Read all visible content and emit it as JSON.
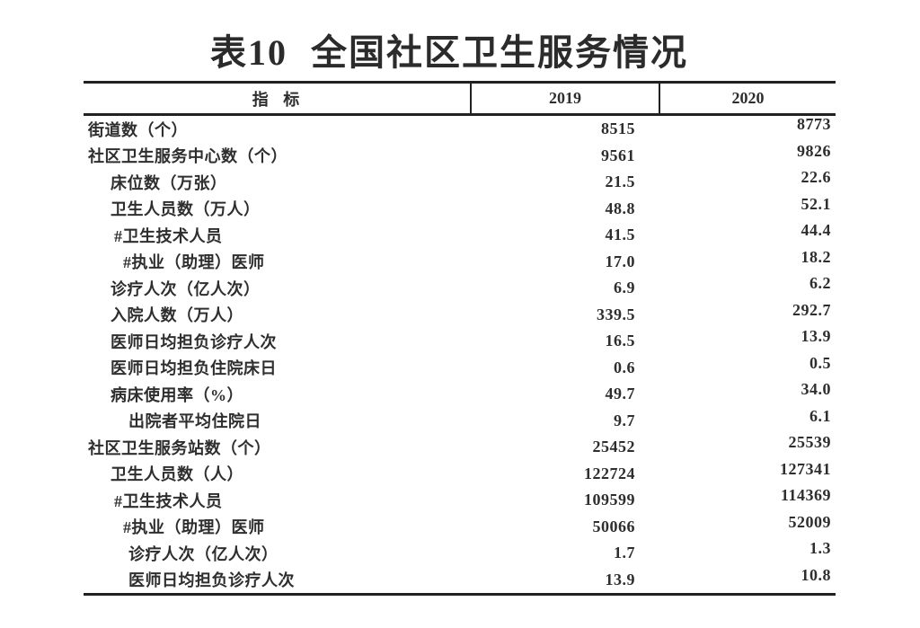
{
  "table": {
    "title": "表10 全国社区卫生服务情况",
    "header": {
      "indicator": "指 标",
      "col2019": "2019",
      "col2020": "2020"
    },
    "rows": [
      {
        "label": "街道数（个）",
        "indent": 0,
        "v2019": "8515",
        "v2020": "8773"
      },
      {
        "label": "社区卫生服务中心数（个）",
        "indent": 0,
        "v2019": "9561",
        "v2020": "9826"
      },
      {
        "label": "床位数（万张）",
        "indent": 1,
        "v2019": "21.5",
        "v2020": "22.6"
      },
      {
        "label": "卫生人员数（万人）",
        "indent": 1,
        "v2019": "48.8",
        "v2020": "52.1"
      },
      {
        "label": "#卫生技术人员",
        "indent": 2,
        "v2019": "41.5",
        "v2020": "44.4"
      },
      {
        "label": "#执业（助理）医师",
        "indent": 3,
        "v2019": "17.0",
        "v2020": "18.2"
      },
      {
        "label": "诊疗人次（亿人次）",
        "indent": 1,
        "v2019": "6.9",
        "v2020": "6.2"
      },
      {
        "label": "入院人数（万人）",
        "indent": 1,
        "v2019": "339.5",
        "v2020": "292.7"
      },
      {
        "label": "医师日均担负诊疗人次",
        "indent": 1,
        "v2019": "16.5",
        "v2020": "13.9"
      },
      {
        "label": "医师日均担负住院床日",
        "indent": 1,
        "v2019": "0.6",
        "v2020": "0.5"
      },
      {
        "label": "病床使用率（%）",
        "indent": 1,
        "v2019": "49.7",
        "v2020": "34.0"
      },
      {
        "label": "出院者平均住院日",
        "indent": 4,
        "v2019": "9.7",
        "v2020": "6.1"
      },
      {
        "label": "社区卫生服务站数（个）",
        "indent": 0,
        "v2019": "25452",
        "v2020": "25539"
      },
      {
        "label": "卫生人员数（人）",
        "indent": 1,
        "v2019": "122724",
        "v2020": "127341"
      },
      {
        "label": "#卫生技术人员",
        "indent": 2,
        "v2019": "109599",
        "v2020": "114369"
      },
      {
        "label": "#执业（助理）医师",
        "indent": 3,
        "v2019": "50066",
        "v2020": "52009"
      },
      {
        "label": "诊疗人次（亿人次）",
        "indent": 4,
        "v2019": "1.7",
        "v2020": "1.3"
      },
      {
        "label": "医师日均担负诊疗人次",
        "indent": 4,
        "v2019": "13.9",
        "v2020": "10.8"
      }
    ],
    "colors": {
      "text": "#2e2e2e",
      "border": "#212121",
      "background": "#ffffff"
    }
  }
}
